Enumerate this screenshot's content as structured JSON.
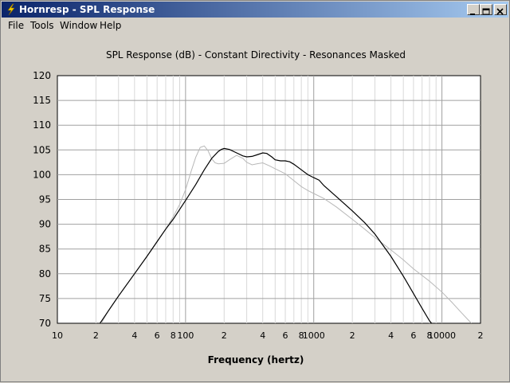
{
  "window": {
    "title": "Hornresp - SPL Response"
  },
  "menu": {
    "items": [
      "File",
      "Tools",
      "Window",
      "Help"
    ]
  },
  "chart_data": {
    "type": "line",
    "title": "SPL Response (dB) - Constant Directivity - Resonances Masked",
    "xlabel": "Frequency (hertz)",
    "ylabel": "",
    "x_scale": "log",
    "xlim": [
      10,
      20000
    ],
    "ylim": [
      70,
      120
    ],
    "grid": true,
    "y_ticks": [
      120,
      115,
      110,
      105,
      100,
      95,
      90,
      85,
      80,
      75,
      70
    ],
    "x_tick_labels": [
      {
        "f": 10,
        "label": "10"
      },
      {
        "f": 20,
        "label": "2"
      },
      {
        "f": 40,
        "label": "4"
      },
      {
        "f": 60,
        "label": "6"
      },
      {
        "f": 80,
        "label": "8"
      },
      {
        "f": 100,
        "label": "100"
      },
      {
        "f": 200,
        "label": "2"
      },
      {
        "f": 400,
        "label": "4"
      },
      {
        "f": 600,
        "label": "6"
      },
      {
        "f": 800,
        "label": "8"
      },
      {
        "f": 1000,
        "label": "1000"
      },
      {
        "f": 2000,
        "label": "2"
      },
      {
        "f": 4000,
        "label": "4"
      },
      {
        "f": 6000,
        "label": "6"
      },
      {
        "f": 8000,
        "label": "8"
      },
      {
        "f": 10000,
        "label": "10000"
      },
      {
        "f": 20000,
        "label": "2"
      }
    ],
    "series": [
      {
        "color": "#000000",
        "points": [
          [
            21.5,
            70
          ],
          [
            25,
            72.5
          ],
          [
            30,
            75.5
          ],
          [
            40,
            80
          ],
          [
            50,
            83.5
          ],
          [
            60,
            86.5
          ],
          [
            70,
            89
          ],
          [
            80,
            91
          ],
          [
            90,
            93
          ],
          [
            100,
            94.8
          ],
          [
            120,
            98
          ],
          [
            140,
            101
          ],
          [
            160,
            103.3
          ],
          [
            180,
            104.7
          ],
          [
            190,
            105.1
          ],
          [
            200,
            105.3
          ],
          [
            220,
            105.1
          ],
          [
            250,
            104.4
          ],
          [
            280,
            103.8
          ],
          [
            300,
            103.6
          ],
          [
            330,
            103.7
          ],
          [
            360,
            104
          ],
          [
            400,
            104.4
          ],
          [
            430,
            104.3
          ],
          [
            470,
            103.6
          ],
          [
            500,
            103
          ],
          [
            550,
            102.8
          ],
          [
            600,
            102.8
          ],
          [
            650,
            102.6
          ],
          [
            700,
            102.1
          ],
          [
            800,
            101
          ],
          [
            900,
            100
          ],
          [
            1000,
            99.4
          ],
          [
            1100,
            98.9
          ],
          [
            1200,
            97.8
          ],
          [
            1500,
            95.6
          ],
          [
            2000,
            92.7
          ],
          [
            2500,
            90.3
          ],
          [
            3000,
            88
          ],
          [
            4000,
            83.5
          ],
          [
            5000,
            79.5
          ],
          [
            6000,
            76
          ],
          [
            7000,
            73
          ],
          [
            8000,
            70.5
          ],
          [
            8300,
            70
          ]
        ]
      },
      {
        "color": "#b8b8b8",
        "points": [
          [
            22,
            70
          ],
          [
            25,
            72.5
          ],
          [
            30,
            75.5
          ],
          [
            40,
            80
          ],
          [
            50,
            83.5
          ],
          [
            60,
            86.5
          ],
          [
            70,
            89
          ],
          [
            80,
            91.5
          ],
          [
            90,
            94
          ],
          [
            100,
            97
          ],
          [
            110,
            100.5
          ],
          [
            120,
            103.5
          ],
          [
            130,
            105.5
          ],
          [
            140,
            105.8
          ],
          [
            150,
            104.8
          ],
          [
            160,
            103.2
          ],
          [
            170,
            102.4
          ],
          [
            180,
            102.2
          ],
          [
            200,
            102.3
          ],
          [
            220,
            103
          ],
          [
            250,
            103.9
          ],
          [
            280,
            103.3
          ],
          [
            300,
            102.5
          ],
          [
            330,
            102
          ],
          [
            360,
            102.2
          ],
          [
            400,
            102.4
          ],
          [
            450,
            101.8
          ],
          [
            500,
            101.2
          ],
          [
            600,
            100.2
          ],
          [
            700,
            98.8
          ],
          [
            800,
            97.6
          ],
          [
            900,
            96.8
          ],
          [
            1000,
            96.2
          ],
          [
            1200,
            95.2
          ],
          [
            1500,
            93.5
          ],
          [
            2000,
            91
          ],
          [
            2500,
            89
          ],
          [
            3000,
            87.3
          ],
          [
            4000,
            84.8
          ],
          [
            5000,
            82.8
          ],
          [
            6000,
            81
          ],
          [
            8000,
            78.5
          ],
          [
            10000,
            76.3
          ],
          [
            12000,
            74.2
          ],
          [
            14000,
            72.3
          ],
          [
            16000,
            70.7
          ],
          [
            17000,
            70
          ]
        ]
      }
    ]
  }
}
